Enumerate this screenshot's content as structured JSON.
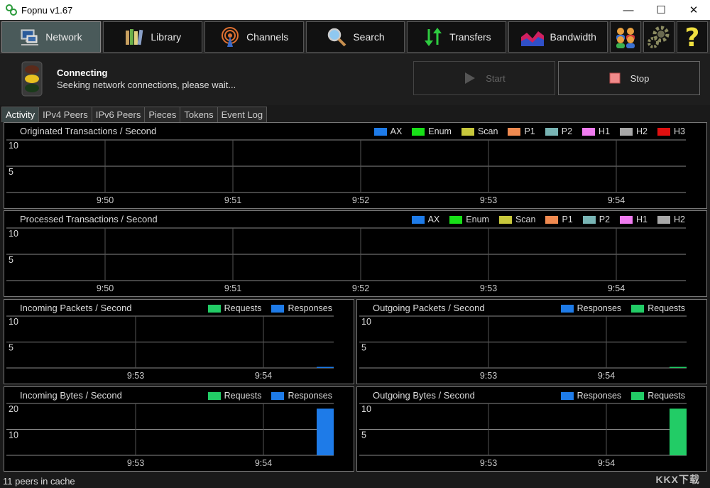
{
  "window": {
    "title": "Fopnu v1.67"
  },
  "toolbar": {
    "network": "Network",
    "library": "Library",
    "channels": "Channels",
    "search": "Search",
    "transfers": "Transfers",
    "bandwidth": "Bandwidth"
  },
  "status": {
    "title": "Connecting",
    "subtitle": "Seeking network connections, please wait...",
    "start_label": "Start",
    "stop_label": "Stop"
  },
  "tabs": [
    "Activity",
    "IPv4 Peers",
    "IPv6 Peers",
    "Pieces",
    "Tokens",
    "Event Log"
  ],
  "colors": {
    "AX": "#1e7be8",
    "Enum": "#18e018",
    "Scan": "#c8c83c",
    "P1": "#f08a50",
    "P2": "#78b4b4",
    "H1": "#f07cf0",
    "H2": "#a8a8a8",
    "H3": "#e01010",
    "Requests": "#22cc66",
    "Responses": "#1e7be8"
  },
  "chart_data": [
    {
      "type": "bar",
      "title": "Originated Transactions / Second",
      "legend": [
        "AX",
        "Enum",
        "Scan",
        "P1",
        "P2",
        "H1",
        "H2",
        "H3"
      ],
      "y_ticks": [
        "10",
        "5"
      ],
      "x_ticks": [
        "9:50",
        "9:51",
        "9:52",
        "9:53",
        "9:54"
      ],
      "ylim": [
        0,
        10
      ],
      "series": []
    },
    {
      "type": "bar",
      "title": "Processed Transactions / Second",
      "legend": [
        "AX",
        "Enum",
        "Scan",
        "P1",
        "P2",
        "H1",
        "H2"
      ],
      "y_ticks": [
        "10",
        "5"
      ],
      "x_ticks": [
        "9:50",
        "9:51",
        "9:52",
        "9:53",
        "9:54"
      ],
      "ylim": [
        0,
        10
      ],
      "series": []
    },
    {
      "type": "bar",
      "title": "Incoming Packets / Second",
      "legend": [
        "Requests",
        "Responses"
      ],
      "y_ticks": [
        "10",
        "5"
      ],
      "x_ticks": [
        "9:53",
        "9:54"
      ],
      "ylim": [
        0,
        10
      ],
      "series": [
        {
          "name": "Responses",
          "values": [
            0.1
          ]
        }
      ]
    },
    {
      "type": "bar",
      "title": "Outgoing Packets / Second",
      "legend": [
        "Responses",
        "Requests"
      ],
      "y_ticks": [
        "10",
        "5"
      ],
      "x_ticks": [
        "9:53",
        "9:54"
      ],
      "ylim": [
        0,
        10
      ],
      "series": [
        {
          "name": "Requests",
          "values": [
            0.1
          ]
        }
      ]
    },
    {
      "type": "bar",
      "title": "Incoming Bytes / Second",
      "legend": [
        "Requests",
        "Responses"
      ],
      "y_ticks": [
        "20",
        "10"
      ],
      "x_ticks": [
        "9:53",
        "9:54"
      ],
      "ylim": [
        0,
        20
      ],
      "series": [
        {
          "name": "Responses",
          "values": [
            18
          ]
        }
      ]
    },
    {
      "type": "bar",
      "title": "Outgoing Bytes / Second",
      "legend": [
        "Responses",
        "Requests"
      ],
      "y_ticks": [
        "10",
        "5"
      ],
      "x_ticks": [
        "9:53",
        "9:54"
      ],
      "ylim": [
        0,
        10
      ],
      "series": [
        {
          "name": "Requests",
          "values": [
            9
          ]
        }
      ]
    }
  ],
  "statusbar": {
    "text": "11 peers in cache"
  },
  "watermark": "KKX下载"
}
